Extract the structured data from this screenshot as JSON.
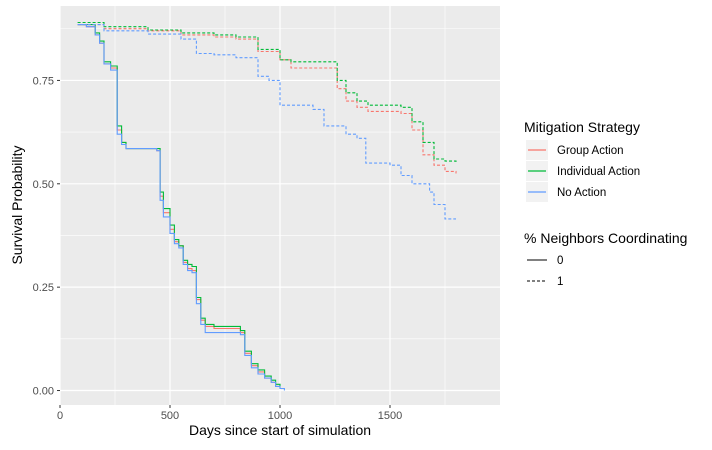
{
  "chart_data": {
    "type": "line",
    "title": "",
    "xlabel": "Days since start of simulation",
    "ylabel": "Survival Probability",
    "xlim": [
      0,
      2000
    ],
    "ylim": [
      -0.035,
      0.93
    ],
    "x_ticks": [
      0,
      500,
      1000,
      1500
    ],
    "x_tick_labels": [
      "0",
      "500",
      "1000",
      "1500"
    ],
    "y_ticks": [
      0,
      0.25,
      0.5,
      0.75
    ],
    "y_tick_labels": [
      "0.00",
      "0.25",
      "0.50",
      "0.75"
    ],
    "grid": true,
    "legend_placement": "right",
    "legend": {
      "color_title": "Mitigation Strategy",
      "color_entries": [
        {
          "label": "Group Action",
          "color": "#F8766D"
        },
        {
          "label": "Individual Action",
          "color": "#00BA38"
        },
        {
          "label": "No Action",
          "color": "#619CFF"
        }
      ],
      "linetype_title": "% Neighbors Coordinating",
      "linetype_entries": [
        {
          "label": "0",
          "linetype": "solid"
        },
        {
          "label": "1",
          "linetype": "dashed"
        }
      ]
    },
    "series": [
      {
        "strategy": "Group Action",
        "coordinating": "0",
        "color": "#F8766D",
        "linetype": "solid",
        "x": [
          80,
          120,
          160,
          180,
          200,
          230,
          260,
          280,
          300,
          440,
          455,
          470,
          500,
          520,
          540,
          560,
          580,
          600,
          620,
          640,
          660,
          700,
          820,
          840,
          870,
          900,
          930,
          960,
          980,
          1000
        ],
        "y": [
          0.885,
          0.88,
          0.86,
          0.84,
          0.79,
          0.78,
          0.63,
          0.6,
          0.585,
          0.58,
          0.47,
          0.43,
          0.39,
          0.36,
          0.35,
          0.31,
          0.295,
          0.29,
          0.22,
          0.17,
          0.155,
          0.15,
          0.14,
          0.09,
          0.06,
          0.045,
          0.03,
          0.02,
          0.01,
          0.005
        ]
      },
      {
        "strategy": "Individual Action",
        "coordinating": "0",
        "color": "#00BA38",
        "linetype": "solid",
        "x": [
          80,
          120,
          160,
          180,
          200,
          230,
          260,
          280,
          300,
          440,
          455,
          470,
          500,
          520,
          540,
          560,
          580,
          600,
          620,
          640,
          660,
          700,
          820,
          840,
          870,
          900,
          930,
          960,
          980,
          1000
        ],
        "y": [
          0.885,
          0.885,
          0.865,
          0.845,
          0.795,
          0.785,
          0.64,
          0.6,
          0.585,
          0.585,
          0.48,
          0.44,
          0.4,
          0.365,
          0.35,
          0.315,
          0.305,
          0.3,
          0.225,
          0.175,
          0.16,
          0.155,
          0.145,
          0.095,
          0.065,
          0.05,
          0.035,
          0.025,
          0.015,
          0.01
        ]
      },
      {
        "strategy": "No Action",
        "coordinating": "0",
        "color": "#619CFF",
        "linetype": "solid",
        "x": [
          80,
          120,
          160,
          180,
          200,
          230,
          260,
          280,
          300,
          440,
          455,
          470,
          500,
          520,
          540,
          560,
          580,
          600,
          620,
          640,
          660,
          700,
          820,
          840,
          870,
          900,
          930,
          960,
          980,
          1000,
          1020
        ],
        "y": [
          0.885,
          0.88,
          0.86,
          0.84,
          0.79,
          0.775,
          0.62,
          0.595,
          0.585,
          0.58,
          0.46,
          0.42,
          0.38,
          0.355,
          0.345,
          0.305,
          0.29,
          0.285,
          0.21,
          0.16,
          0.14,
          0.14,
          0.135,
          0.085,
          0.055,
          0.04,
          0.03,
          0.02,
          0.01,
          0.005,
          0.0
        ]
      },
      {
        "strategy": "Group Action",
        "coordinating": "1",
        "color": "#F8766D",
        "linetype": "dashed",
        "x": [
          80,
          200,
          400,
          550,
          700,
          800,
          900,
          1000,
          1050,
          1200,
          1260,
          1300,
          1350,
          1400,
          1550,
          1600,
          1650,
          1700,
          1750,
          1800
        ],
        "y": [
          0.885,
          0.875,
          0.87,
          0.86,
          0.855,
          0.85,
          0.82,
          0.8,
          0.78,
          0.78,
          0.73,
          0.7,
          0.685,
          0.675,
          0.67,
          0.63,
          0.57,
          0.545,
          0.53,
          0.525
        ]
      },
      {
        "strategy": "Individual Action",
        "coordinating": "1",
        "color": "#00BA38",
        "linetype": "dashed",
        "x": [
          80,
          200,
          400,
          550,
          700,
          800,
          900,
          1000,
          1050,
          1200,
          1260,
          1300,
          1350,
          1400,
          1550,
          1600,
          1650,
          1700,
          1750,
          1800
        ],
        "y": [
          0.89,
          0.88,
          0.872,
          0.865,
          0.86,
          0.855,
          0.825,
          0.8,
          0.795,
          0.795,
          0.75,
          0.72,
          0.7,
          0.69,
          0.685,
          0.65,
          0.6,
          0.56,
          0.555,
          0.553
        ]
      },
      {
        "strategy": "No Action",
        "coordinating": "1",
        "color": "#619CFF",
        "linetype": "dashed",
        "x": [
          80,
          200,
          400,
          550,
          620,
          700,
          800,
          900,
          950,
          1000,
          1150,
          1200,
          1300,
          1350,
          1390,
          1500,
          1550,
          1600,
          1680,
          1700,
          1750,
          1800
        ],
        "y": [
          0.885,
          0.87,
          0.862,
          0.85,
          0.815,
          0.812,
          0.805,
          0.76,
          0.75,
          0.69,
          0.68,
          0.64,
          0.62,
          0.61,
          0.55,
          0.545,
          0.52,
          0.5,
          0.48,
          0.45,
          0.415,
          0.415
        ]
      }
    ]
  }
}
